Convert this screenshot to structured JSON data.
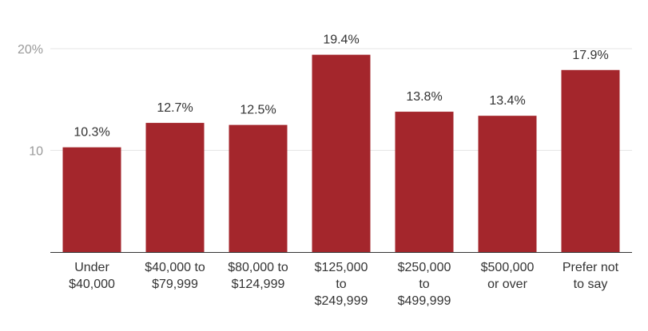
{
  "chart_data": {
    "type": "bar",
    "title": "",
    "xlabel": "",
    "ylabel": "",
    "ylim": [
      0,
      20
    ],
    "yticks": [
      {
        "value": 10,
        "label": "10"
      },
      {
        "value": 20,
        "label": "20%"
      }
    ],
    "categories": [
      [
        "Under",
        "$40,000"
      ],
      [
        "$40,000 to",
        "$79,999"
      ],
      [
        "$80,000 to",
        "$124,999"
      ],
      [
        "$125,000",
        "to",
        "$249,999"
      ],
      [
        "$250,000",
        "to",
        "$499,999"
      ],
      [
        "$500,000",
        "or over"
      ],
      [
        "Prefer not",
        "to say"
      ]
    ],
    "values": [
      10.3,
      12.7,
      12.5,
      19.4,
      13.8,
      13.4,
      17.9
    ],
    "data_labels": [
      "10.3%",
      "12.7%",
      "12.5%",
      "19.4%",
      "13.8%",
      "13.4%",
      "17.9%"
    ],
    "bar_color": "#a4262c",
    "grid": true
  }
}
